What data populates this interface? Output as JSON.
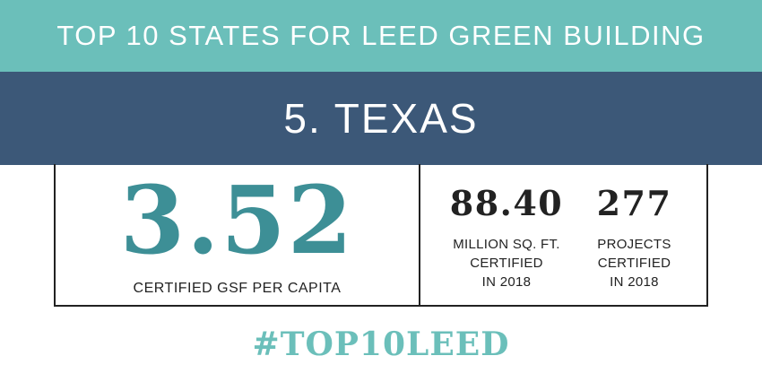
{
  "header": {
    "title": "TOP 10 STATES FOR LEED GREEN BUILDING"
  },
  "state": {
    "title": "5. TEXAS"
  },
  "main_stat": {
    "value": "3.52",
    "label": "CERTIFIED GSF PER CAPITA"
  },
  "stats": [
    {
      "value": "88.40",
      "label": "MILLION SQ. FT.\nCERTIFIED\nIN 2018"
    },
    {
      "value": "277",
      "label": "PROJECTS\nCERTIFIED\nIN 2018"
    }
  ],
  "hashtag": "#TOP10LEED",
  "colors": {
    "teal": "#6bbfba",
    "navy": "#3c5878",
    "dark_teal": "#3d8f96",
    "text": "#222222"
  }
}
